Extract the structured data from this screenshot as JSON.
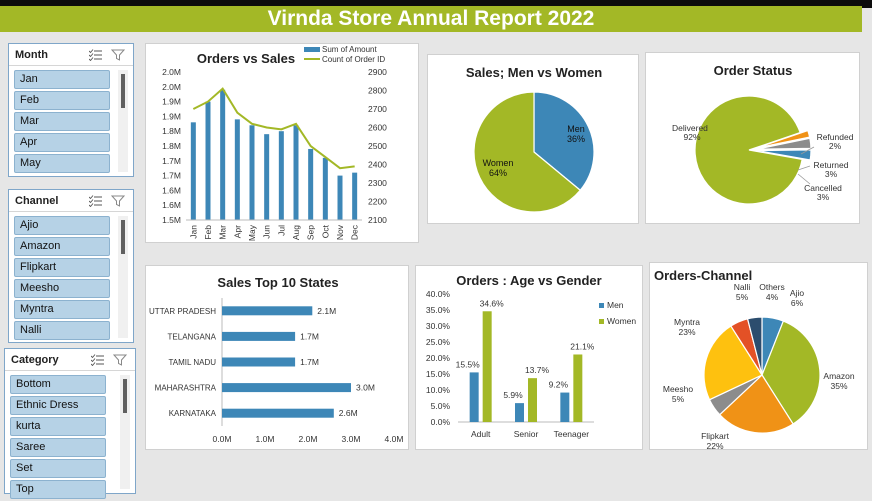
{
  "title": "Virnda Store Annual Report 2022",
  "colors": {
    "green": "#a3b826",
    "blue": "#3d87b7",
    "orange": "#f09216",
    "gray": "#8c8c8c",
    "yellow": "#fec10f",
    "red": "#e35126",
    "navy": "#2c4d6e"
  },
  "slicers": [
    {
      "title": "Month",
      "items": [
        "Jan",
        "Feb",
        "Mar",
        "Apr",
        "May"
      ]
    },
    {
      "title": "Channel",
      "items": [
        "Ajio",
        "Amazon",
        "Flipkart",
        "Meesho",
        "Myntra",
        "Nalli"
      ]
    },
    {
      "title": "Category",
      "items": [
        "Bottom",
        "Ethnic Dress",
        "kurta",
        "Saree",
        "Set",
        "Top"
      ]
    }
  ],
  "chart_data": [
    {
      "type": "bar+line",
      "title": "Orders vs Sales",
      "categories": [
        "Jan",
        "Feb",
        "Mar",
        "Apr",
        "May",
        "Jun",
        "Jul",
        "Aug",
        "Sep",
        "Oct",
        "Nov",
        "Dec"
      ],
      "series": [
        {
          "name": "Sum of Amount",
          "type": "bar",
          "axis": "left",
          "values": [
            1.83,
            1.9,
            1.94,
            1.84,
            1.82,
            1.79,
            1.8,
            1.82,
            1.74,
            1.71,
            1.65,
            1.66
          ]
        },
        {
          "name": "Count of Order ID",
          "type": "line",
          "axis": "right",
          "values": [
            2700,
            2740,
            2810,
            2680,
            2620,
            2600,
            2590,
            2620,
            2500,
            2440,
            2380,
            2390
          ]
        }
      ],
      "left_ticks": [
        "1.5M",
        "1.6M",
        "1.6M",
        "1.7M",
        "1.7M",
        "1.8M",
        "1.8M",
        "1.9M",
        "1.9M",
        "2.0M",
        "2.0M"
      ],
      "right_ticks": [
        "2100",
        "2200",
        "2300",
        "2400",
        "2500",
        "2600",
        "2700",
        "2800",
        "2900"
      ],
      "ylim": [
        1.5,
        2.0
      ],
      "ylim_right": [
        2100,
        2900
      ]
    },
    {
      "type": "pie",
      "title": "Sales; Men vs Women",
      "slices": [
        {
          "name": "Men",
          "value": 36,
          "label": "36%"
        },
        {
          "name": "Women",
          "value": 64,
          "label": "64%"
        }
      ]
    },
    {
      "type": "pie",
      "title": "Order Status",
      "slices": [
        {
          "name": "Delivered",
          "value": 92,
          "label": "92%"
        },
        {
          "name": "Refunded",
          "value": 2,
          "label": "2%"
        },
        {
          "name": "Returned",
          "value": 3,
          "label": "3%"
        },
        {
          "name": "Cancelled",
          "value": 3,
          "label": "3%"
        }
      ]
    },
    {
      "type": "bar",
      "orientation": "horizontal",
      "title": "Sales Top 10 States",
      "categories": [
        "UTTAR PRADESH",
        "TELANGANA",
        "TAMIL NADU",
        "MAHARASHTRA",
        "KARNATAKA"
      ],
      "values": [
        2.1,
        1.7,
        1.7,
        3.0,
        2.6
      ],
      "labels": [
        "2.1M",
        "1.7M",
        "1.7M",
        "3.0M",
        "2.6M"
      ],
      "xticks": [
        "0.0M",
        "1.0M",
        "2.0M",
        "3.0M",
        "4.0M"
      ],
      "xlim": [
        0,
        4
      ]
    },
    {
      "type": "bar",
      "title": "Orders : Age vs Gender",
      "categories": [
        "Adult",
        "Senior",
        "Teenager"
      ],
      "series": [
        {
          "name": "Men",
          "values": [
            15.5,
            5.9,
            9.2
          ],
          "labels": [
            "15.5%",
            "5.9%",
            "9.2%"
          ]
        },
        {
          "name": "Women",
          "values": [
            34.6,
            13.7,
            21.1
          ],
          "labels": [
            "34.6%",
            "13.7%",
            "21.1%"
          ]
        }
      ],
      "yticks": [
        "0.0%",
        "5.0%",
        "10.0%",
        "15.0%",
        "20.0%",
        "25.0%",
        "30.0%",
        "35.0%",
        "40.0%"
      ],
      "ylim": [
        0,
        40
      ]
    },
    {
      "type": "pie",
      "title": "Orders-Channel",
      "slices": [
        {
          "name": "Ajio",
          "value": 6,
          "label": "6%"
        },
        {
          "name": "Amazon",
          "value": 35,
          "label": "35%"
        },
        {
          "name": "Flipkart",
          "value": 22,
          "label": "22%"
        },
        {
          "name": "Meesho",
          "value": 5,
          "label": "5%"
        },
        {
          "name": "Myntra",
          "value": 23,
          "label": "23%"
        },
        {
          "name": "Nalli",
          "value": 5,
          "label": "5%"
        },
        {
          "name": "Others",
          "value": 4,
          "label": "4%"
        }
      ]
    }
  ]
}
